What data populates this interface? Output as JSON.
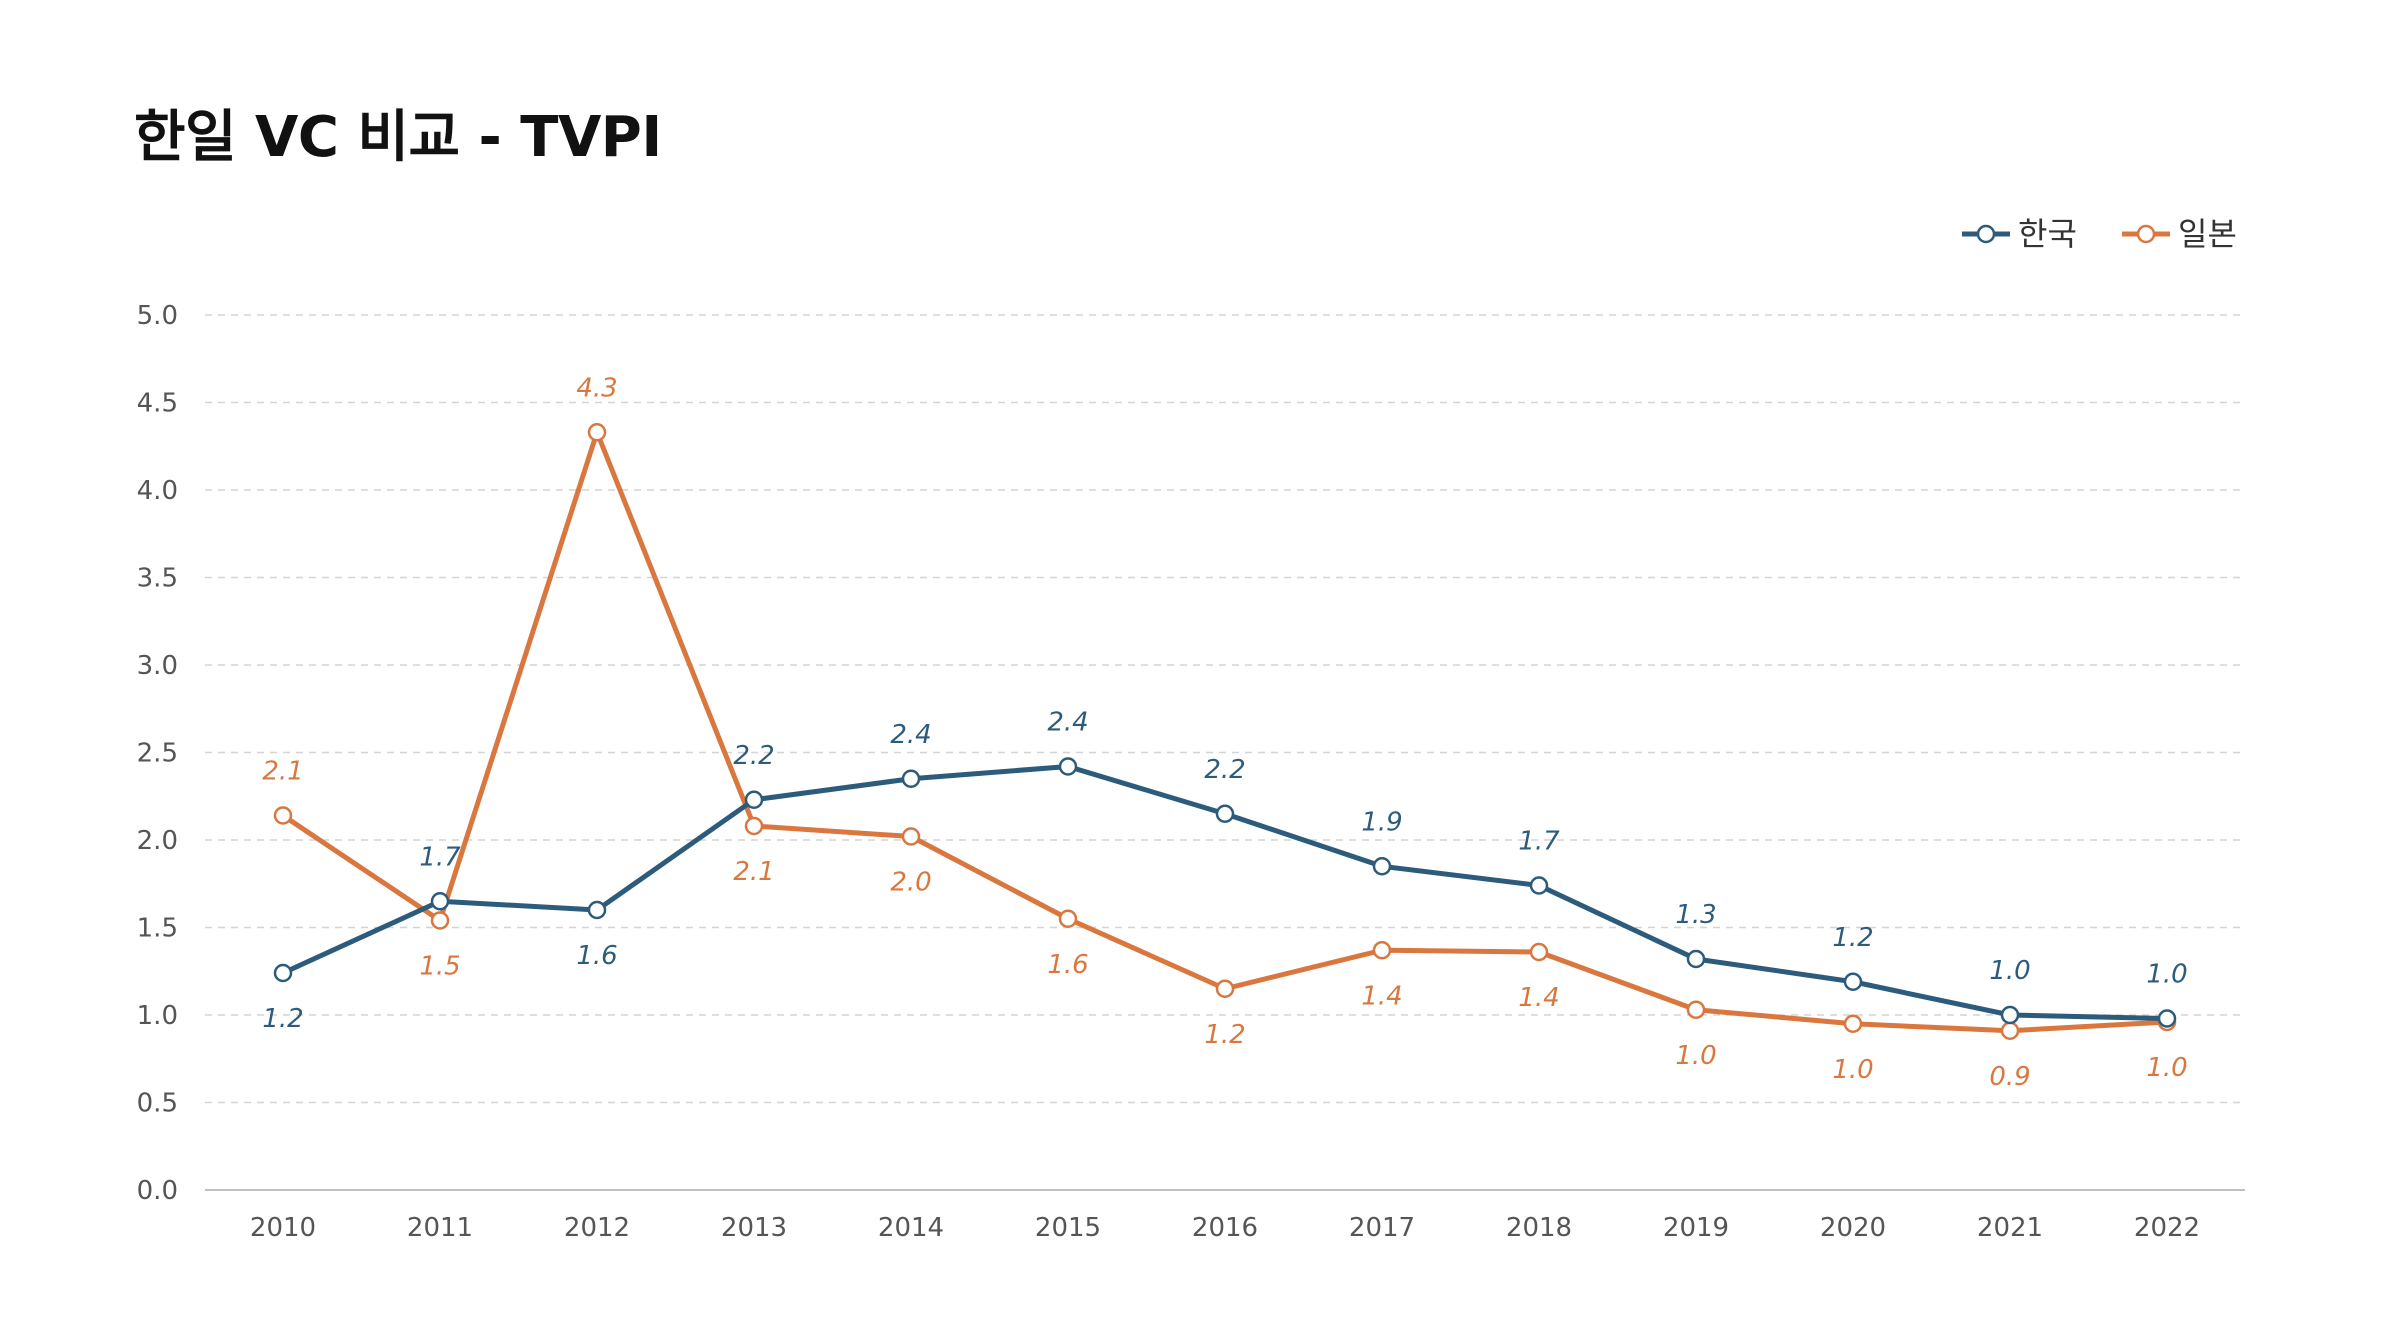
{
  "chart_data": {
    "type": "line",
    "title": "한일 VC 비교 - TVPI",
    "xlabel": "",
    "ylabel": "",
    "x": [
      "2010",
      "2011",
      "2012",
      "2013",
      "2014",
      "2015",
      "2016",
      "2017",
      "2018",
      "2019",
      "2020",
      "2021",
      "2022"
    ],
    "ylim": [
      0,
      5
    ],
    "yticks": [
      "0.0",
      "0.5",
      "1.0",
      "1.5",
      "2.0",
      "2.5",
      "3.0",
      "3.5",
      "4.0",
      "4.5",
      "5.0"
    ],
    "grid": true,
    "legend_position": "top-right",
    "series": [
      {
        "name": "한국",
        "color": "#2c5b7c",
        "values": [
          1.24,
          1.65,
          1.6,
          2.23,
          2.35,
          2.42,
          2.15,
          1.85,
          1.74,
          1.32,
          1.19,
          1.0,
          0.98
        ],
        "labels": [
          "1.2",
          "1.7",
          "1.6",
          "2.2",
          "2.4",
          "2.4",
          "2.2",
          "1.9",
          "1.7",
          "1.3",
          "1.2",
          "1.0",
          "1.0"
        ]
      },
      {
        "name": "일본",
        "color": "#d9773f",
        "values": [
          2.14,
          1.54,
          4.33,
          2.08,
          2.02,
          1.55,
          1.15,
          1.37,
          1.36,
          1.03,
          0.95,
          0.91,
          0.96
        ],
        "labels": [
          "2.1",
          "1.5",
          "4.3",
          "2.1",
          "2.0",
          "1.6",
          "1.2",
          "1.4",
          "1.4",
          "1.0",
          "1.0",
          "0.9",
          "1.0"
        ]
      }
    ]
  }
}
